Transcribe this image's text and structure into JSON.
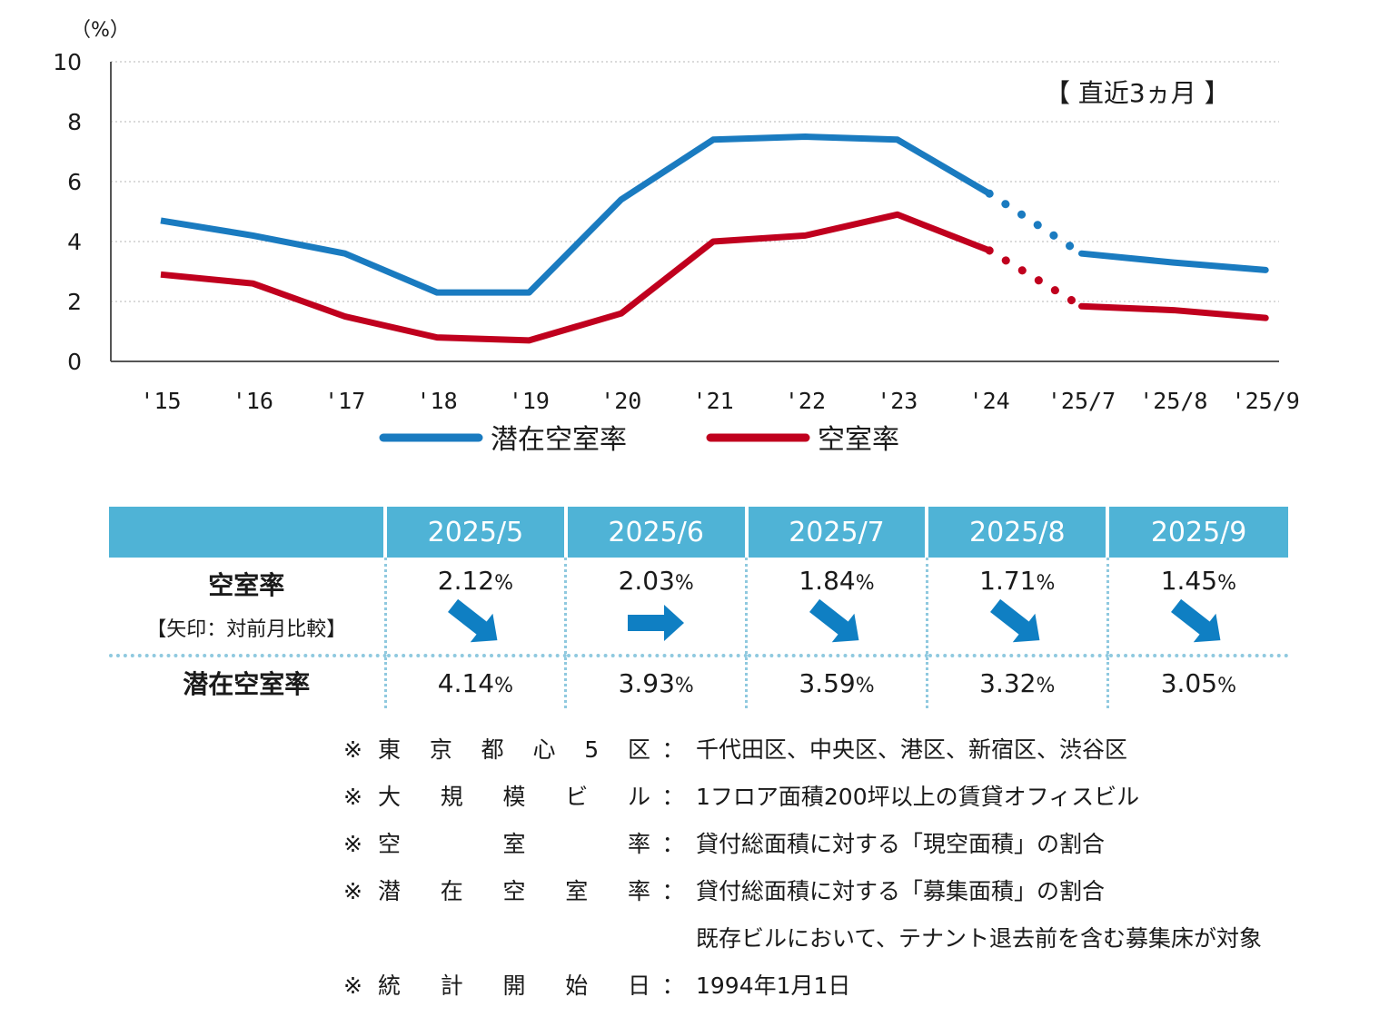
{
  "chart_data": {
    "type": "line",
    "unit_label": "（%）",
    "annotation": "【 直近3ヵ月 】",
    "categories": [
      "'15",
      "'16",
      "'17",
      "'18",
      "'19",
      "'20",
      "'21",
      "'22",
      "'23",
      "'24",
      "'25/7",
      "'25/8",
      "'25/9"
    ],
    "ylim": [
      0,
      10
    ],
    "yticks": [
      0,
      2,
      4,
      6,
      8,
      10
    ],
    "grid": true,
    "legend_position": "bottom",
    "series": [
      {
        "name": "潜在空室率",
        "color": "#1a7bc0",
        "values": [
          4.7,
          4.2,
          3.6,
          2.3,
          2.3,
          5.4,
          7.4,
          7.5,
          7.4,
          5.6,
          3.6,
          3.3,
          3.05
        ]
      },
      {
        "name": "空室率",
        "color": "#c0001e",
        "values": [
          2.9,
          2.6,
          1.5,
          0.8,
          0.7,
          1.6,
          4.0,
          4.2,
          4.9,
          3.7,
          1.84,
          1.71,
          1.45
        ]
      }
    ]
  },
  "table": {
    "months": [
      "2025/5",
      "2025/6",
      "2025/7",
      "2025/8",
      "2025/9"
    ],
    "vacancy_label": "空室率",
    "vacancy_sub": "【矢印：対前月比較】",
    "potential_label": "潜在空室率",
    "pct_sign": "%",
    "vacancy": [
      "2.12",
      "2.03",
      "1.84",
      "1.71",
      "1.45"
    ],
    "arrows": [
      "down",
      "flat",
      "down",
      "down",
      "down"
    ],
    "potential": [
      "4.14",
      "3.93",
      "3.59",
      "3.32",
      "3.05"
    ],
    "arrow_color": "#0f7fc3"
  },
  "notes": [
    {
      "mark": "※",
      "key": "東京都心5区",
      "colon": "：",
      "value": "千代田区、中央区、港区、新宿区、渋谷区"
    },
    {
      "mark": "※",
      "key": "大規模ビル",
      "colon": "：",
      "value": "1フロア面積200坪以上の賃貸オフィスビル"
    },
    {
      "mark": "※",
      "key": "空室率",
      "colon": "：",
      "value": "貸付総面積に対する「現空面積」の割合"
    },
    {
      "mark": "※",
      "key": "潜在空室率",
      "colon": "：",
      "value": "貸付総面積に対する「募集面積」の割合"
    },
    {
      "mark": "",
      "key": "",
      "colon": "",
      "value": "既存ビルにおいて、テナント退去前を含む募集床が対象"
    },
    {
      "mark": "※",
      "key": "統計開始日",
      "colon": "：",
      "value": "1994年1月1日"
    }
  ]
}
